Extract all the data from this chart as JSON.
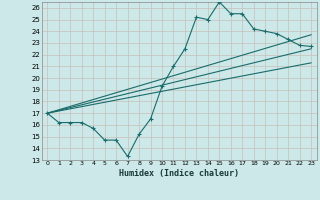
{
  "title": "",
  "xlabel": "Humidex (Indice chaleur)",
  "ylabel": "",
  "bg_color": "#cce8e8",
  "grid_color": "#b0d0d0",
  "line_color": "#1a6b6b",
  "xlim": [
    -0.5,
    23.5
  ],
  "ylim": [
    13,
    26.5
  ],
  "yticks": [
    13,
    14,
    15,
    16,
    17,
    18,
    19,
    20,
    21,
    22,
    23,
    24,
    25,
    26
  ],
  "xticks": [
    0,
    1,
    2,
    3,
    4,
    5,
    6,
    7,
    8,
    9,
    10,
    11,
    12,
    13,
    14,
    15,
    16,
    17,
    18,
    19,
    20,
    21,
    22,
    23
  ],
  "main_x": [
    0,
    1,
    2,
    3,
    4,
    5,
    6,
    7,
    8,
    9,
    10,
    11,
    12,
    13,
    14,
    15,
    16,
    17,
    18,
    19,
    20,
    21,
    22,
    23
  ],
  "main_y": [
    17.0,
    16.2,
    16.2,
    16.2,
    15.7,
    14.7,
    14.7,
    13.3,
    15.2,
    16.5,
    19.3,
    21.0,
    22.5,
    25.2,
    25.0,
    26.5,
    25.5,
    25.5,
    24.2,
    24.0,
    23.8,
    23.3,
    22.8,
    22.7
  ],
  "line2_x": [
    0,
    23
  ],
  "line2_y": [
    17.0,
    23.7
  ],
  "line3_x": [
    0,
    23
  ],
  "line3_y": [
    17.0,
    22.5
  ],
  "line4_x": [
    0,
    23
  ],
  "line4_y": [
    17.0,
    21.3
  ]
}
